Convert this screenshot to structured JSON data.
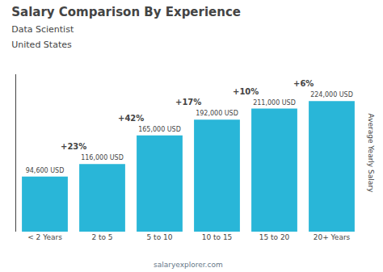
{
  "chart_data": {
    "type": "bar",
    "title": "Salary Comparison By Experience",
    "subtitle": [
      "Data Scientist",
      "United States"
    ],
    "ylabel": "Average Yearly Salary",
    "categories": [
      "< 2 Years",
      "2 to 5",
      "5 to 10",
      "10 to 15",
      "15 to 20",
      "20+ Years"
    ],
    "values": [
      94600,
      116000,
      165000,
      192000,
      211000,
      224000
    ],
    "value_labels": [
      "94,600 USD",
      "116,000 USD",
      "165,000 USD",
      "192,000 USD",
      "211,000 USD",
      "224,000 USD"
    ],
    "data_labels": true,
    "color": "#29b6d8",
    "ylim": [
      0,
      270000
    ],
    "tick_labels": "x",
    "grid": false,
    "annotations": [
      {
        "text": "+23%",
        "from": "< 2 Years",
        "to": "2 to 5"
      },
      {
        "text": "+42%",
        "from": "2 to 5",
        "to": "5 to 10"
      },
      {
        "text": "+17%",
        "from": "5 to 10",
        "to": "10 to 15"
      },
      {
        "text": "+10%",
        "from": "10 to 15",
        "to": "15 to 20"
      },
      {
        "text": "+6%",
        "from": "15 to 20",
        "to": "20+ Years"
      },
      {
        "text": "salaryexplorer.com"
      }
    ]
  }
}
